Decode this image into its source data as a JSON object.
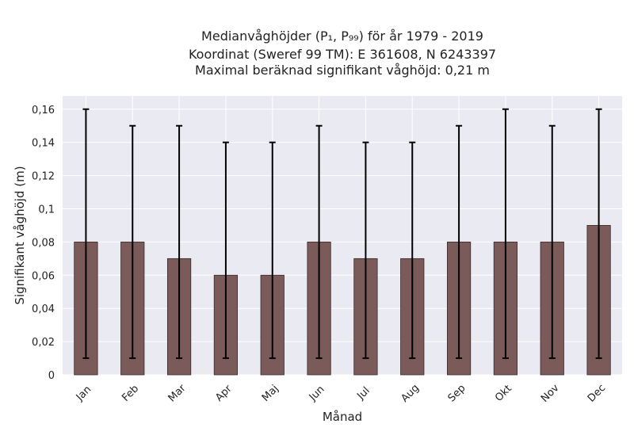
{
  "chart_data": {
    "type": "bar",
    "title_lines": [
      "Medianvåghöjder (P₁, P₉₉) för år 1979 - 2019",
      "Koordinat (Sweref 99 TM): E 361608, N 6243397",
      "Maximal beräknad signifikant våghöjd: 0,21 m"
    ],
    "xlabel": "Månad",
    "ylabel": "Signifikant våghöjd (m)",
    "categories": [
      "Jan",
      "Feb",
      "Mar",
      "Apr",
      "Maj",
      "Jun",
      "Jul",
      "Aug",
      "Sep",
      "Okt",
      "Nov",
      "Dec"
    ],
    "values": [
      0.08,
      0.08,
      0.07,
      0.06,
      0.06,
      0.08,
      0.07,
      0.07,
      0.08,
      0.08,
      0.08,
      0.09
    ],
    "p1": [
      0.01,
      0.01,
      0.01,
      0.01,
      0.01,
      0.01,
      0.01,
      0.01,
      0.01,
      0.01,
      0.01,
      0.01
    ],
    "p99": [
      0.16,
      0.15,
      0.15,
      0.14,
      0.14,
      0.15,
      0.14,
      0.14,
      0.15,
      0.16,
      0.15,
      0.16
    ],
    "ylim": [
      0,
      0.168
    ],
    "yticks": [
      0,
      0.02,
      0.04,
      0.06,
      0.08,
      0.1,
      0.12,
      0.14,
      0.16
    ],
    "ytick_labels": [
      "0",
      "0,02",
      "0,04",
      "0,06",
      "0,08",
      "0,1",
      "0,12",
      "0,14",
      "0,16"
    ],
    "grid": true,
    "colors": {
      "bar": "#7b5a5a",
      "bar_edge": "#3a2a2a",
      "errorbar": "#000000",
      "plot_bg": "#eaeaf2",
      "grid": "#ffffff"
    }
  }
}
